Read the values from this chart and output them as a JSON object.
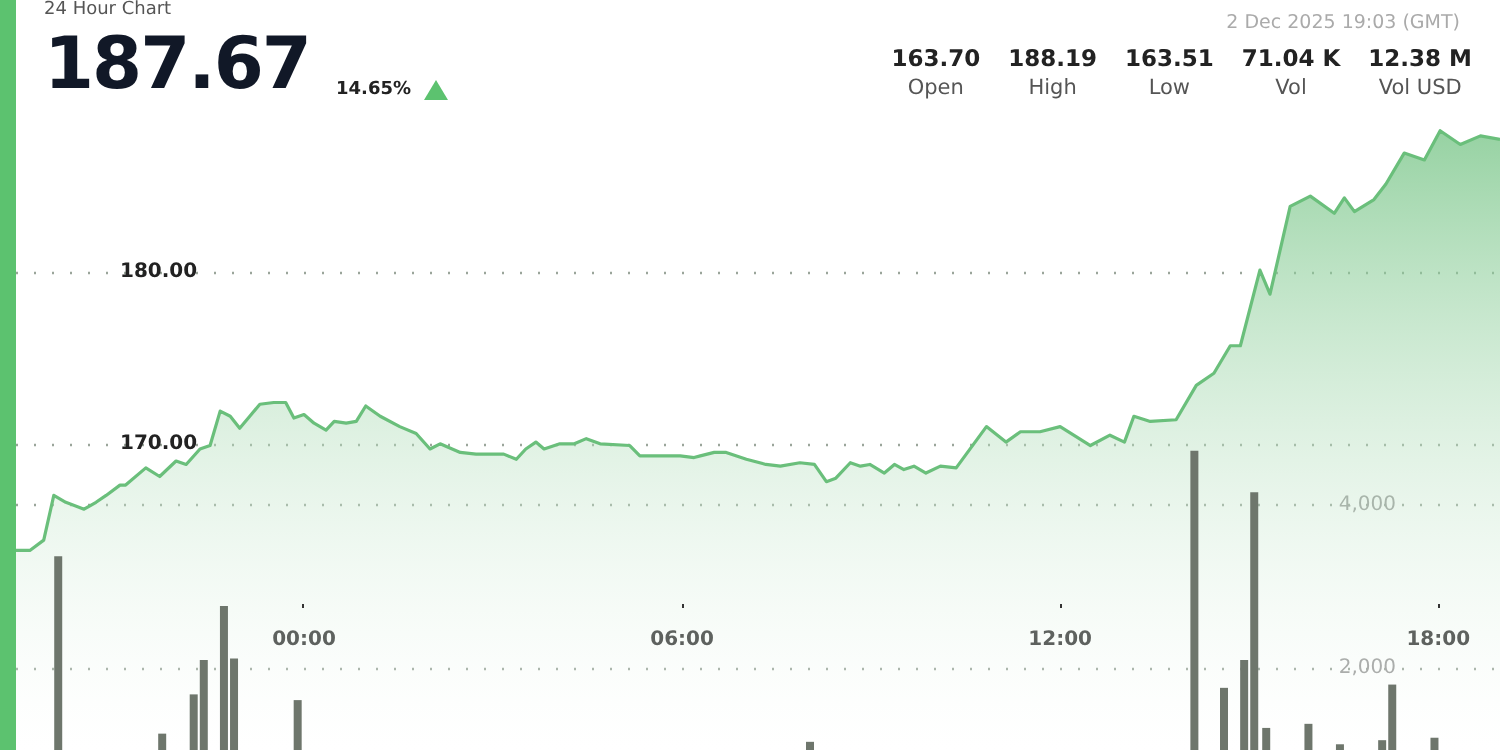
{
  "chart_data": {
    "type": "area",
    "title": "24 Hour Chart",
    "subtitle": "2 Dec 2025 19:03 (GMT)",
    "annotations": [
      "187.67",
      "14.65%",
      "163.70",
      "Open",
      "188.19",
      "High",
      "163.51",
      "Low",
      "71.04 K",
      "Vol",
      "12.38 M",
      "Vol USD"
    ],
    "xlim": [
      -4.57,
      18.98
    ],
    "xticks": [
      {
        "value": 0,
        "label": "00:00"
      },
      {
        "value": 6,
        "label": "06:00"
      },
      {
        "value": 12,
        "label": "12:00"
      },
      {
        "value": 18,
        "label": "18:00"
      }
    ],
    "ylim": [
      152.2,
      195.8
    ],
    "yticks": [
      {
        "value": 170,
        "label": "170.00"
      },
      {
        "value": 180,
        "label": "180.00"
      }
    ],
    "y2lim": [
      1000,
      10170
    ],
    "y2ticks": [
      {
        "value": 2000,
        "label": "2,000"
      },
      {
        "value": 4000,
        "label": "4,000"
      }
    ],
    "grid": "y",
    "series": [
      {
        "color": "#6abf7b",
        "x": [
          -4.57,
          -4.35,
          -4.13,
          -3.97,
          -3.78,
          -3.49,
          -3.3,
          -3.14,
          -2.92,
          -2.83,
          -2.51,
          -2.29,
          -2.03,
          -1.87,
          -1.65,
          -1.49,
          -1.33,
          -1.17,
          -1.02,
          -0.86,
          -0.7,
          -0.48,
          -0.29,
          -0.16,
          0,
          0.16,
          0.35,
          0.48,
          0.67,
          0.83,
          0.98,
          1.21,
          1.52,
          1.78,
          2.0,
          2.16,
          2.48,
          2.73,
          3.02,
          3.17,
          3.37,
          3.52,
          3.68,
          3.81,
          4.06,
          4.29,
          4.48,
          4.7,
          5.17,
          5.33,
          5.65,
          5.97,
          6.19,
          6.29,
          6.51,
          6.7,
          7.02,
          7.33,
          7.56,
          7.87,
          8.1,
          8.29,
          8.44,
          8.67,
          8.83,
          8.98,
          9.21,
          9.37,
          9.52,
          9.68,
          9.87,
          10.1,
          10.35,
          10.51,
          10.83,
          11.14,
          11.37,
          11.68,
          12.0,
          12.48,
          12.79,
          13.02,
          13.17,
          13.43,
          13.84,
          14.16,
          14.44,
          14.7,
          14.86,
          15.17,
          15.33,
          15.65,
          15.97,
          16.35,
          16.51,
          16.67,
          16.98,
          17.17,
          17.46,
          17.78,
          18.03,
          18.35,
          18.67,
          18.98
        ],
        "values": [
          163.8,
          163.8,
          164.4,
          167.0,
          166.6,
          166.2,
          166.6,
          167.0,
          167.6,
          167.6,
          168.6,
          168.1,
          169.0,
          168.8,
          169.7,
          169.9,
          171.9,
          171.6,
          170.9,
          171.6,
          172.3,
          172.4,
          172.4,
          171.5,
          171.7,
          171.2,
          170.8,
          171.3,
          171.2,
          171.3,
          172.2,
          171.6,
          171.0,
          170.6,
          169.7,
          170.0,
          169.5,
          169.4,
          169.4,
          169.4,
          169.1,
          169.7,
          170.1,
          169.7,
          170.0,
          170.0,
          170.3,
          170.0,
          169.9,
          169.3,
          169.3,
          169.3,
          169.2,
          169.3,
          169.5,
          169.5,
          169.1,
          168.8,
          168.7,
          168.9,
          168.8,
          167.8,
          168.0,
          168.9,
          168.7,
          168.8,
          168.3,
          168.8,
          168.5,
          168.7,
          168.3,
          168.7,
          168.6,
          169.4,
          171.0,
          170.1,
          170.7,
          170.7,
          171.0,
          169.9,
          170.5,
          170.1,
          171.6,
          171.3,
          171.4,
          173.4,
          174.1,
          175.7,
          175.7,
          180.1,
          178.7,
          183.8,
          184.4,
          183.4,
          184.3,
          183.5,
          184.2,
          185.1,
          186.9,
          186.5,
          188.2,
          187.4,
          187.9,
          187.7
        ]
      },
      {
        "type": "bar",
        "axis": "y2",
        "color": "#6e766c",
        "x": [
          -3.9,
          -2.25,
          -1.75,
          -1.59,
          -1.27,
          -1.11,
          -0.1,
          8.03,
          14.13,
          14.6,
          14.92,
          15.08,
          15.27,
          15.94,
          16.44,
          17.11,
          17.27,
          17.94
        ],
        "values": [
          3370,
          1200,
          1680,
          2100,
          2760,
          2120,
          1610,
          1100,
          4660,
          1760,
          2100,
          4150,
          1270,
          1320,
          1070,
          1120,
          1800,
          1150
        ]
      }
    ]
  }
}
